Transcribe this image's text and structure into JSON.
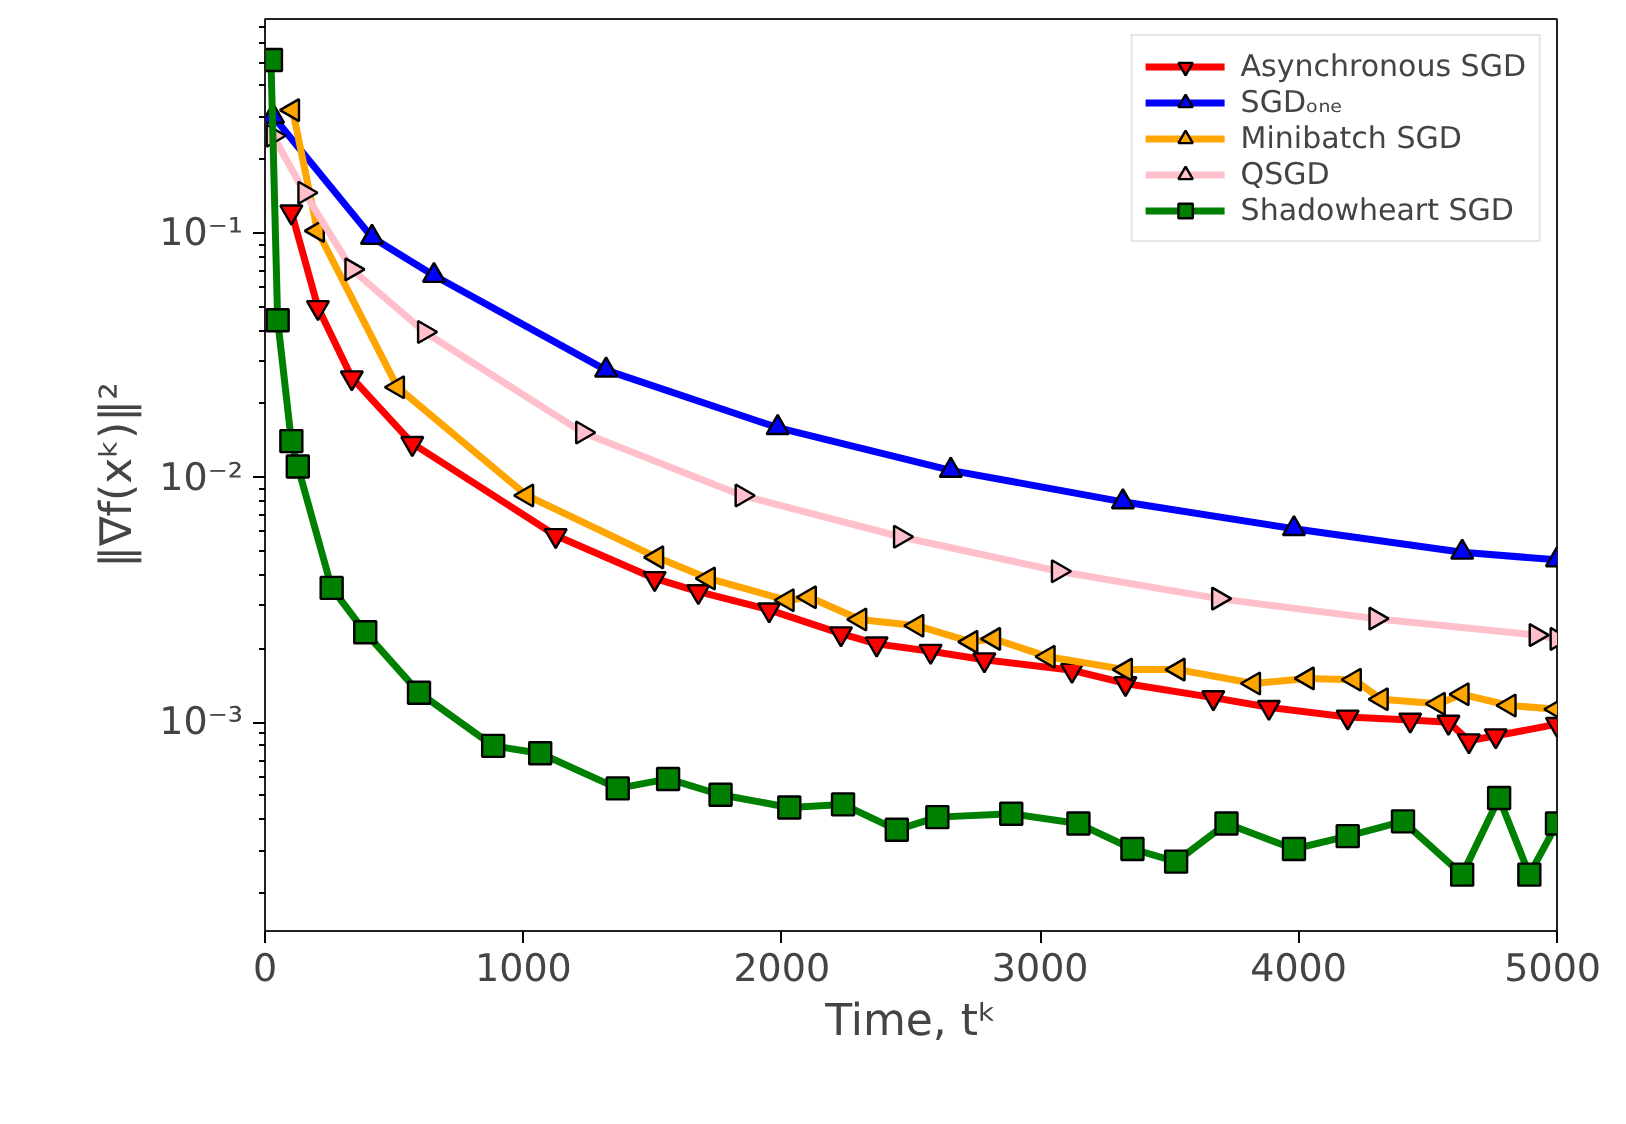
{
  "chart_data": {
    "type": "line",
    "xlabel": "Time, tᵏ",
    "ylabel": "‖∇f(xᵏ)‖²",
    "log": "y",
    "grid": false,
    "legend": "top right",
    "line_style": "solid",
    "xlim": [
      0,
      5000
    ],
    "xticks": [
      0,
      1000,
      2000,
      3000,
      4000,
      5000
    ],
    "ylim": [
      0.00014,
      0.75
    ],
    "yticks": [
      {
        "value": 0.001,
        "label": "10⁻³"
      },
      {
        "value": 0.01,
        "label": "10⁻²"
      },
      {
        "value": 0.1,
        "label": "10⁻¹"
      }
    ],
    "series": [
      {
        "name": "Asynchronous SGD",
        "color": "#ff0000",
        "marker": "triangle_down",
        "x": [
          102,
          205,
          336,
          570,
          1125,
          1508,
          1677,
          1951,
          2229,
          2367,
          2576,
          2784,
          3123,
          3330,
          3670,
          3885,
          4190,
          4432,
          4580,
          4659,
          4763,
          5000
        ],
        "values": [
          0.122,
          0.0496,
          0.0256,
          0.0138,
          0.0058,
          0.00387,
          0.00342,
          0.00288,
          0.0023,
          0.00209,
          0.00195,
          0.0018,
          0.00163,
          0.00144,
          0.00126,
          0.00115,
          0.00105,
          0.00102,
          0.001,
          0.00084,
          0.00088,
          0.00098
        ]
      },
      {
        "name": "SGDₒₙₑ",
        "color": "#0000ff",
        "marker": "triangle",
        "x": [
          31,
          414,
          654,
          1320,
          1984,
          2654,
          3320,
          3982,
          4633,
          5000
        ],
        "values": [
          0.3,
          0.096,
          0.067,
          0.0275,
          0.016,
          0.0107,
          0.00796,
          0.00618,
          0.00495,
          0.00461
        ]
      },
      {
        "name": "Minibatch SGD",
        "color": "#ffa500",
        "marker": "triangle_left",
        "x": [
          107,
          203,
          513,
          1013,
          1516,
          1716,
          2021,
          2107,
          2302,
          2523,
          2732,
          2820,
          3031,
          3330,
          3534,
          3826,
          4034,
          4216,
          4320,
          4541,
          4633,
          4815,
          5000
        ],
        "values": [
          0.318,
          0.102,
          0.0234,
          0.00845,
          0.00472,
          0.00387,
          0.00315,
          0.00324,
          0.00263,
          0.00248,
          0.00213,
          0.00219,
          0.00185,
          0.00164,
          0.00164,
          0.00144,
          0.00151,
          0.00149,
          0.00124,
          0.00119,
          0.0013,
          0.00117,
          0.00113
        ]
      },
      {
        "name": "QSGD",
        "color": "#ffc0cb",
        "marker": "triangle_right",
        "x": [
          31,
          154,
          336,
          617,
          1229,
          1846,
          2459,
          3070,
          3690,
          4299,
          4919,
          5000
        ],
        "values": [
          0.25,
          0.146,
          0.071,
          0.0394,
          0.0153,
          0.00845,
          0.00573,
          0.00414,
          0.0032,
          0.00265,
          0.00227,
          0.00219
        ]
      },
      {
        "name": "Shadowheart SGD",
        "color": "#008000",
        "marker": "square",
        "x": [
          23,
          49,
          102,
          127,
          258,
          388,
          596,
          883,
          1065,
          1365,
          1560,
          1763,
          2029,
          2237,
          2445,
          2602,
          2888,
          3148,
          3357,
          3526,
          3721,
          3982,
          4190,
          4404,
          4633,
          4776,
          4893,
          5000
        ],
        "values": [
          0.51,
          0.044,
          0.0141,
          0.0111,
          0.00354,
          0.00233,
          0.00132,
          0.0008,
          0.000746,
          0.000536,
          0.000586,
          0.000505,
          0.000448,
          0.000461,
          0.000363,
          0.000409,
          0.000422,
          0.000385,
          0.000303,
          0.000269,
          0.000385,
          0.000303,
          0.000342,
          0.000393,
          0.000238,
          0.00049,
          0.000238,
          0.000385
        ]
      }
    ]
  }
}
